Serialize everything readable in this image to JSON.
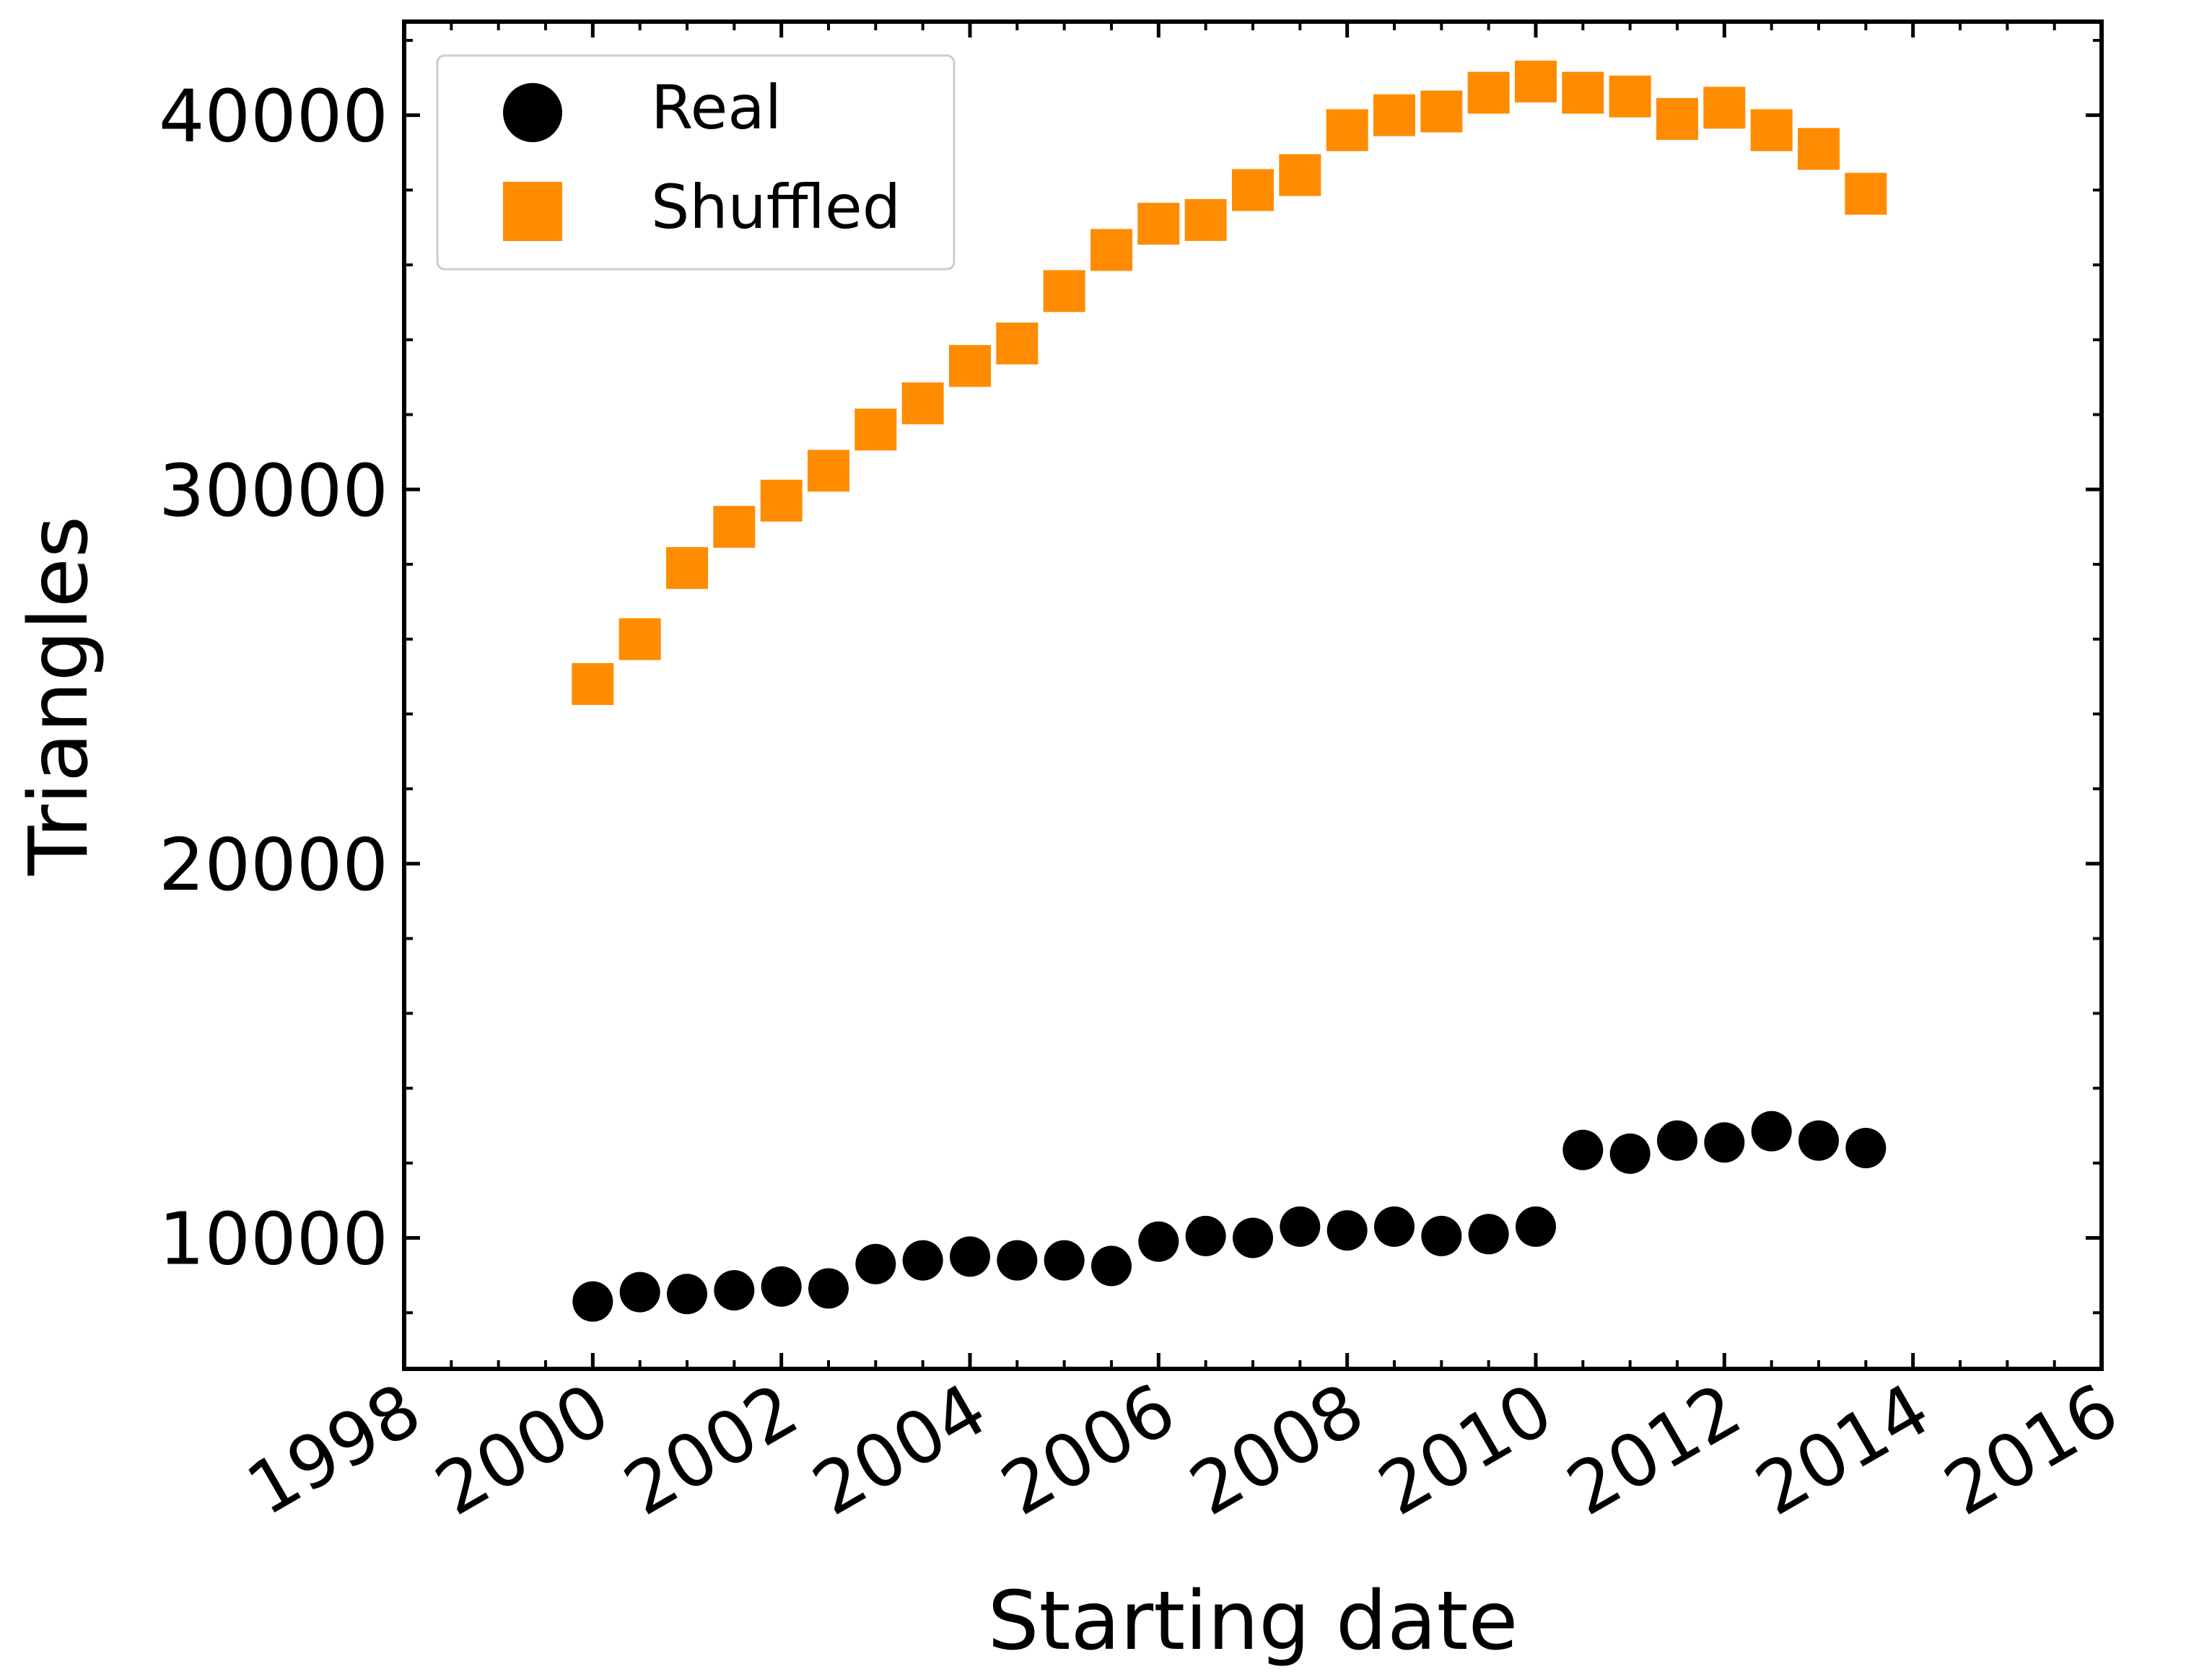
{
  "chart_data": {
    "type": "scatter",
    "xlabel": "Starting date",
    "ylabel": "Triangles",
    "xlim": [
      1998,
      2016
    ],
    "ylim": [
      6500,
      42500
    ],
    "xticks": [
      1998,
      2000,
      2002,
      2004,
      2006,
      2008,
      2010,
      2012,
      2014,
      2016
    ],
    "xtick_labels": [
      "1998",
      "2000",
      "2002",
      "2004",
      "2006",
      "2008",
      "2010",
      "2012",
      "2014",
      "2016"
    ],
    "yticks": [
      10000,
      20000,
      30000,
      40000
    ],
    "ytick_labels": [
      "10000",
      "20000",
      "30000",
      "40000"
    ],
    "legend_position": "top-left",
    "series": [
      {
        "name": "Real",
        "marker": "circle",
        "color": "#000000",
        "x": [
          2000.0,
          2000.5,
          2001.0,
          2001.5,
          2002.0,
          2002.5,
          2003.0,
          2003.5,
          2004.0,
          2004.5,
          2005.0,
          2005.5,
          2006.0,
          2006.5,
          2007.0,
          2007.5,
          2008.0,
          2008.5,
          2009.0,
          2009.5,
          2010.0,
          2010.5,
          2011.0,
          2011.5,
          2012.0,
          2012.5,
          2013.0,
          2013.5
        ],
        "y": [
          8300,
          8550,
          8500,
          8600,
          8700,
          8650,
          9300,
          9400,
          9500,
          9400,
          9400,
          9250,
          9900,
          10050,
          10000,
          10300,
          10200,
          10300,
          10050,
          10100,
          10300,
          12350,
          12250,
          12600,
          12550,
          12850,
          12600,
          12400
        ]
      },
      {
        "name": "Shuffled",
        "marker": "square",
        "color": "#ff8c00",
        "x": [
          2000.0,
          2000.5,
          2001.0,
          2001.5,
          2002.0,
          2002.5,
          2003.0,
          2003.5,
          2004.0,
          2004.5,
          2005.0,
          2005.5,
          2006.0,
          2006.5,
          2007.0,
          2007.5,
          2008.0,
          2008.5,
          2009.0,
          2009.5,
          2010.0,
          2010.5,
          2011.0,
          2011.5,
          2012.0,
          2012.5,
          2013.0,
          2013.5
        ],
        "y": [
          24800,
          26000,
          27900,
          29000,
          29700,
          30500,
          31600,
          32300,
          33300,
          33900,
          35300,
          36400,
          37100,
          37200,
          38000,
          38400,
          39600,
          40000,
          40100,
          40600,
          40900,
          40600,
          40500,
          39900,
          40200,
          39600,
          39100,
          37900
        ]
      }
    ]
  }
}
